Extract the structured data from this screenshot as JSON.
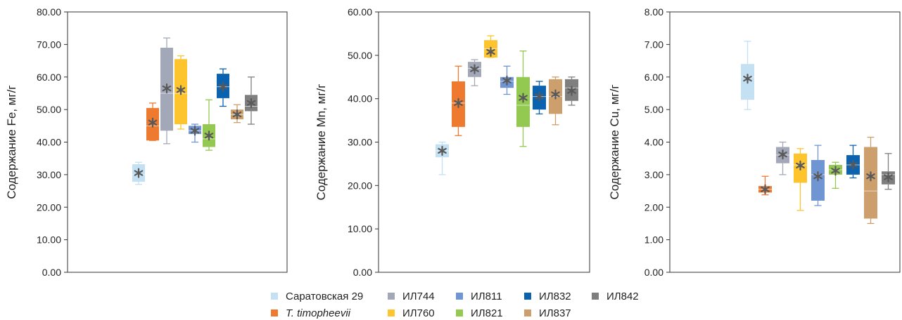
{
  "chart_data": [
    {
      "type": "box",
      "ylabel": "Содержание Fe, мг/г",
      "ylim": [
        0,
        80
      ],
      "ytick_step": 10,
      "ytick_labels": [
        "0.00",
        "10.00",
        "20.00",
        "30.00",
        "40.00",
        "50.00",
        "60.00",
        "70.00",
        "80.00"
      ],
      "boxes": [
        {
          "variety": "Саратовская 29",
          "min": 27.0,
          "q1": 27.8,
          "median": 30.0,
          "q3": 33.2,
          "max": 33.8,
          "mean": 30.5
        },
        {
          "variety": "T. timopheevii",
          "min": 40.5,
          "q1": 40.5,
          "median": 45.0,
          "q3": 50.5,
          "max": 52.0,
          "mean": 46.0
        },
        {
          "variety": "ИЛ744",
          "min": 39.5,
          "q1": 43.5,
          "median": 55.0,
          "q3": 69.0,
          "max": 72.0,
          "mean": 56.5
        },
        {
          "variety": "ИЛ760",
          "min": 44.0,
          "q1": 45.5,
          "median": 55.0,
          "q3": 65.5,
          "max": 66.5,
          "mean": 56.0
        },
        {
          "variety": "ИЛ811",
          "min": 40.0,
          "q1": 42.5,
          "median": 43.5,
          "q3": 45.0,
          "max": 45.5,
          "mean": 43.5
        },
        {
          "variety": "ИЛ821",
          "min": 37.5,
          "q1": 38.5,
          "median": 41.0,
          "q3": 45.5,
          "max": 53.0,
          "mean": 42.0
        },
        {
          "variety": "ИЛ832",
          "min": 51.0,
          "q1": 53.5,
          "median": 57.0,
          "q3": 61.0,
          "max": 62.5,
          "mean": 57.0
        },
        {
          "variety": "ИЛ837",
          "min": 46.0,
          "q1": 47.0,
          "median": 48.5,
          "q3": 50.0,
          "max": 51.5,
          "mean": 48.5
        },
        {
          "variety": "ИЛ842",
          "min": 45.5,
          "q1": 49.5,
          "median": 51.0,
          "q3": 54.5,
          "max": 60.0,
          "mean": 52.0
        }
      ]
    },
    {
      "type": "box",
      "ylabel": "Содержание Mn, мг/г",
      "ylim": [
        0,
        60
      ],
      "ytick_step": 10,
      "ytick_labels": [
        "0.00",
        "10.00",
        "20.00",
        "30.00",
        "40.00",
        "50.00",
        "60.00"
      ],
      "boxes": [
        {
          "variety": "Саратовская 29",
          "min": 22.5,
          "q1": 26.5,
          "median": 28.0,
          "q3": 29.5,
          "max": 30.0,
          "mean": 28.0
        },
        {
          "variety": "T. timopheevii",
          "min": 31.5,
          "q1": 33.5,
          "median": 39.0,
          "q3": 44.0,
          "max": 47.5,
          "mean": 39.0
        },
        {
          "variety": "ИЛ744",
          "min": 43.0,
          "q1": 45.0,
          "median": 47.0,
          "q3": 48.5,
          "max": 49.0,
          "mean": 46.8
        },
        {
          "variety": "ИЛ760",
          "min": 49.5,
          "q1": 49.5,
          "median": 51.5,
          "q3": 53.5,
          "max": 54.5,
          "mean": 50.8
        },
        {
          "variety": "ИЛ811",
          "min": 41.0,
          "q1": 42.5,
          "median": 44.0,
          "q3": 45.0,
          "max": 47.5,
          "mean": 44.2
        },
        {
          "variety": "ИЛ821",
          "min": 29.0,
          "q1": 33.5,
          "median": 38.5,
          "q3": 45.0,
          "max": 51.0,
          "mean": 40.2
        },
        {
          "variety": "ИЛ832",
          "min": 36.5,
          "q1": 37.5,
          "median": 40.5,
          "q3": 43.0,
          "max": 44.0,
          "mean": 40.5
        },
        {
          "variety": "ИЛ837",
          "min": 34.0,
          "q1": 36.5,
          "median": 40.5,
          "q3": 44.5,
          "max": 45.0,
          "mean": 41.0
        },
        {
          "variety": "ИЛ842",
          "min": 38.5,
          "q1": 39.5,
          "median": 42.5,
          "q3": 44.5,
          "max": 45.0,
          "mean": 41.8
        }
      ]
    },
    {
      "type": "box",
      "ylabel": "Содержание Cu, мг/г",
      "ylim": [
        0,
        8
      ],
      "ytick_step": 1,
      "ytick_labels": [
        "0.00",
        "1.00",
        "2.00",
        "3.00",
        "4.00",
        "5.00",
        "6.00",
        "7.00",
        "8.00"
      ],
      "boxes": [
        {
          "variety": "Саратовская 29",
          "min": 5.0,
          "q1": 5.3,
          "median": 6.0,
          "q3": 6.4,
          "max": 7.1,
          "mean": 5.95
        },
        {
          "variety": "T. timopheevii",
          "min": 2.38,
          "q1": 2.45,
          "median": 2.55,
          "q3": 2.65,
          "max": 2.95,
          "mean": 2.55
        },
        {
          "variety": "ИЛ744",
          "min": 3.0,
          "q1": 3.35,
          "median": 3.6,
          "q3": 3.85,
          "max": 4.0,
          "mean": 3.62
        },
        {
          "variety": "ИЛ760",
          "min": 1.9,
          "q1": 2.75,
          "median": 3.3,
          "q3": 3.65,
          "max": 3.8,
          "mean": 3.28
        },
        {
          "variety": "ИЛ811",
          "min": 2.05,
          "q1": 2.2,
          "median": 3.0,
          "q3": 3.45,
          "max": 3.9,
          "mean": 2.95
        },
        {
          "variety": "ИЛ821",
          "min": 2.58,
          "q1": 3.0,
          "median": 3.15,
          "q3": 3.3,
          "max": 3.38,
          "mean": 3.12
        },
        {
          "variety": "ИЛ832",
          "min": 2.9,
          "q1": 3.0,
          "median": 3.3,
          "q3": 3.6,
          "max": 3.9,
          "mean": 3.3
        },
        {
          "variety": "ИЛ837",
          "min": 1.5,
          "q1": 1.65,
          "median": 2.5,
          "q3": 3.85,
          "max": 4.15,
          "mean": 2.95
        },
        {
          "variety": "ИЛ842",
          "min": 2.55,
          "q1": 2.7,
          "median": 3.0,
          "q3": 3.1,
          "max": 3.65,
          "mean": 2.92
        }
      ]
    }
  ],
  "legend": [
    {
      "label": "Саратовская 29",
      "color": "#c4e0f3",
      "italic": false
    },
    {
      "label": "T. timopheevii",
      "color": "#ee7a30",
      "italic": true
    },
    {
      "label": "ИЛ744",
      "color": "#a3a8b9",
      "italic": false
    },
    {
      "label": "ИЛ760",
      "color": "#fdc42d",
      "italic": false
    },
    {
      "label": "ИЛ811",
      "color": "#6f95d3",
      "italic": false
    },
    {
      "label": "ИЛ821",
      "color": "#93c950",
      "italic": false
    },
    {
      "label": "ИЛ832",
      "color": "#0b63b0",
      "italic": false
    },
    {
      "label": "ИЛ837",
      "color": "#cc9f6d",
      "italic": false
    },
    {
      "label": "ИЛ842",
      "color": "#7f7f7f",
      "italic": false
    }
  ],
  "colors": {
    "mean_marker": "#595959",
    "axis": "#333333",
    "tick_text": "#222222"
  }
}
